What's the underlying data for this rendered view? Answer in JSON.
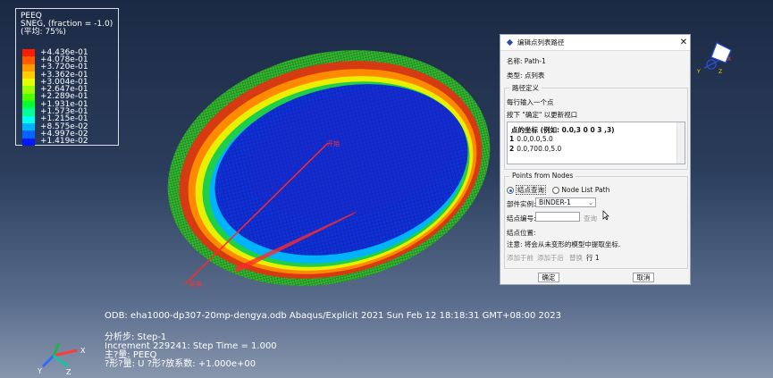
{
  "legend": {
    "variable": "PEEQ",
    "section": "SNEG, (fraction = -1.0)",
    "average": "(平均: 75%)",
    "entries": [
      {
        "value": "+4.436e-01",
        "color": "#ff1a00"
      },
      {
        "value": "+4.078e-01",
        "color": "#ff5a00"
      },
      {
        "value": "+3.720e-01",
        "color": "#ff9900"
      },
      {
        "value": "+3.362e-01",
        "color": "#ffcc00"
      },
      {
        "value": "+3.004e-01",
        "color": "#e6ff00"
      },
      {
        "value": "+2.647e-01",
        "color": "#99ff00"
      },
      {
        "value": "+2.289e-01",
        "color": "#4dff00"
      },
      {
        "value": "+1.931e-01",
        "color": "#00ff33"
      },
      {
        "value": "+1.573e-01",
        "color": "#00ff99"
      },
      {
        "value": "+1.215e-01",
        "color": "#00ffee"
      },
      {
        "value": "+8.575e-02",
        "color": "#00b3ff"
      },
      {
        "value": "+4.997e-02",
        "color": "#0066ff"
      },
      {
        "value": "+1.419e-02",
        "color": "#0019ff"
      }
    ]
  },
  "viewport": {
    "path_start_label": "开始",
    "path_end_label": "结束"
  },
  "info": {
    "odb_line": "ODB: eha1000-dp307-20mp-dengya.odb    Abaqus/Explicit 2021    Sun Feb 12 18:18:31 GMT+08:00 2023",
    "step_line": "分析步: Step-1",
    "increment_line": "Increment    229241: Step Time =      1.000",
    "primary_var_line": "主?量: PEEQ",
    "deform_line": "?形?量: U    ?形?放系数: +1.000e+00"
  },
  "triad": {
    "x": "X",
    "y": "Y",
    "z": "Z"
  },
  "dialog": {
    "title": "编辑点列表路径",
    "name_line": "名称: Path-1",
    "type_line": "类型: 点列表",
    "path_def_caption": "路径定义",
    "hint1": "每行输入一个点",
    "hint2": "按下 \"确定\" 以更新视口",
    "table_header": "点的坐标 (例如: 0.0,3     0 0 3     ,3)",
    "rows": [
      {
        "n": "1",
        "coord": "0.0,0.0,5.0"
      },
      {
        "n": "2",
        "coord": "0.0,700.0,5.0"
      }
    ],
    "points_caption": "Points from Nodes",
    "radio_node_query": "结点查询",
    "radio_node_list": "Node List Path",
    "part_instance_label": "部件实例:",
    "part_instance_value": "BINDER-1",
    "node_number_label": "结点编号:",
    "query_btn": "查询",
    "node_position_label": "结点位置:",
    "note": "注意: 将会从未变形的模型中提取坐标.",
    "add_before": "添加于前",
    "add_after": "添加于后",
    "replace": "替换",
    "row_label": "行 1",
    "ok": "确定",
    "cancel": "取消"
  }
}
